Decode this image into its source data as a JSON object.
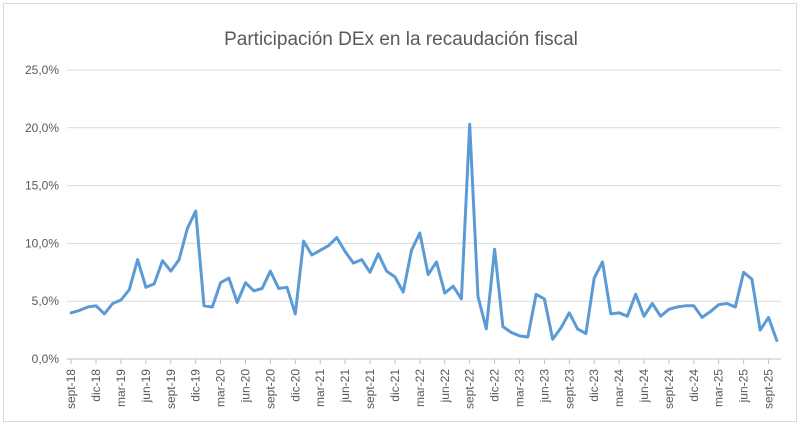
{
  "chart_data": {
    "type": "line",
    "title": "Participación DEx en la recaudación fiscal",
    "xlabel": "",
    "ylabel": "",
    "ylim": [
      0,
      25
    ],
    "y_ticks": [
      "0,0%",
      "5,0%",
      "10,0%",
      "15,0%",
      "20,0%",
      "25,0%"
    ],
    "y_tick_values": [
      0,
      5,
      10,
      15,
      20,
      25
    ],
    "grid": true,
    "legend": "none",
    "line_color": "#5b9bd5",
    "grid_color": "#d9d9d9",
    "x_tick_labels": [
      "sept-18",
      "dic-18",
      "mar-19",
      "jun-19",
      "sept-19",
      "dic-19",
      "mar-20",
      "jun-20",
      "sept-20",
      "dic-20",
      "mar-21",
      "jun-21",
      "sept-21",
      "dic-21",
      "mar-22",
      "jun-22",
      "sept-22",
      "dic-22",
      "mar-23",
      "jun-23",
      "sept-23",
      "dic-23",
      "mar-24",
      "jun-24",
      "sept-24",
      "dic-24",
      "mar-25",
      "jun-25",
      "sept-25"
    ],
    "x_tick_every": 3,
    "series": [
      {
        "name": "Participación DEx",
        "categories": [
          "sept-18",
          "oct-18",
          "nov-18",
          "dic-18",
          "ene-19",
          "feb-19",
          "mar-19",
          "abr-19",
          "may-19",
          "jun-19",
          "jul-19",
          "ago-19",
          "sept-19",
          "oct-19",
          "nov-19",
          "dic-19",
          "ene-20",
          "feb-20",
          "mar-20",
          "abr-20",
          "may-20",
          "jun-20",
          "jul-20",
          "ago-20",
          "sept-20",
          "oct-20",
          "nov-20",
          "dic-20",
          "ene-21",
          "feb-21",
          "mar-21",
          "abr-21",
          "may-21",
          "jun-21",
          "jul-21",
          "ago-21",
          "sept-21",
          "oct-21",
          "nov-21",
          "dic-21",
          "ene-22",
          "feb-22",
          "mar-22",
          "abr-22",
          "may-22",
          "jun-22",
          "jul-22",
          "ago-22",
          "sept-22",
          "oct-22",
          "nov-22",
          "dic-22",
          "ene-23",
          "feb-23",
          "mar-23",
          "abr-23",
          "may-23",
          "jun-23",
          "jul-23",
          "ago-23",
          "sept-23",
          "oct-23",
          "nov-23",
          "dic-23",
          "ene-24",
          "feb-24",
          "mar-24",
          "abr-24",
          "may-24",
          "jun-24",
          "jul-24",
          "ago-24",
          "sept-24",
          "oct-24",
          "nov-24",
          "dic-24",
          "ene-25",
          "feb-25",
          "mar-25",
          "abr-25",
          "may-25",
          "jun-25",
          "jul-25",
          "ago-25",
          "sept-25",
          "oct-25"
        ],
        "values": [
          4.0,
          4.2,
          4.5,
          4.6,
          3.9,
          4.8,
          5.1,
          6.0,
          8.6,
          6.2,
          6.5,
          8.5,
          7.6,
          8.6,
          11.3,
          12.8,
          4.6,
          4.5,
          6.6,
          7.0,
          4.9,
          6.6,
          5.9,
          6.1,
          7.6,
          6.1,
          6.2,
          3.9,
          10.2,
          9.0,
          9.4,
          9.8,
          10.5,
          9.3,
          8.3,
          8.6,
          7.5,
          9.1,
          7.6,
          7.1,
          5.8,
          9.4,
          10.9,
          7.3,
          8.4,
          5.7,
          6.3,
          5.2,
          20.3,
          5.4,
          2.6,
          9.5,
          2.8,
          2.3,
          2.0,
          1.9,
          5.6,
          5.2,
          1.7,
          2.7,
          4.0,
          2.6,
          2.2,
          7.0,
          8.4,
          3.9,
          4.0,
          3.7,
          5.6,
          3.7,
          4.8,
          3.7,
          4.3,
          4.5,
          4.6,
          4.6,
          3.6,
          4.1,
          4.7,
          4.8,
          4.5,
          7.5,
          6.9,
          2.5,
          3.6,
          1.6
        ]
      }
    ]
  }
}
